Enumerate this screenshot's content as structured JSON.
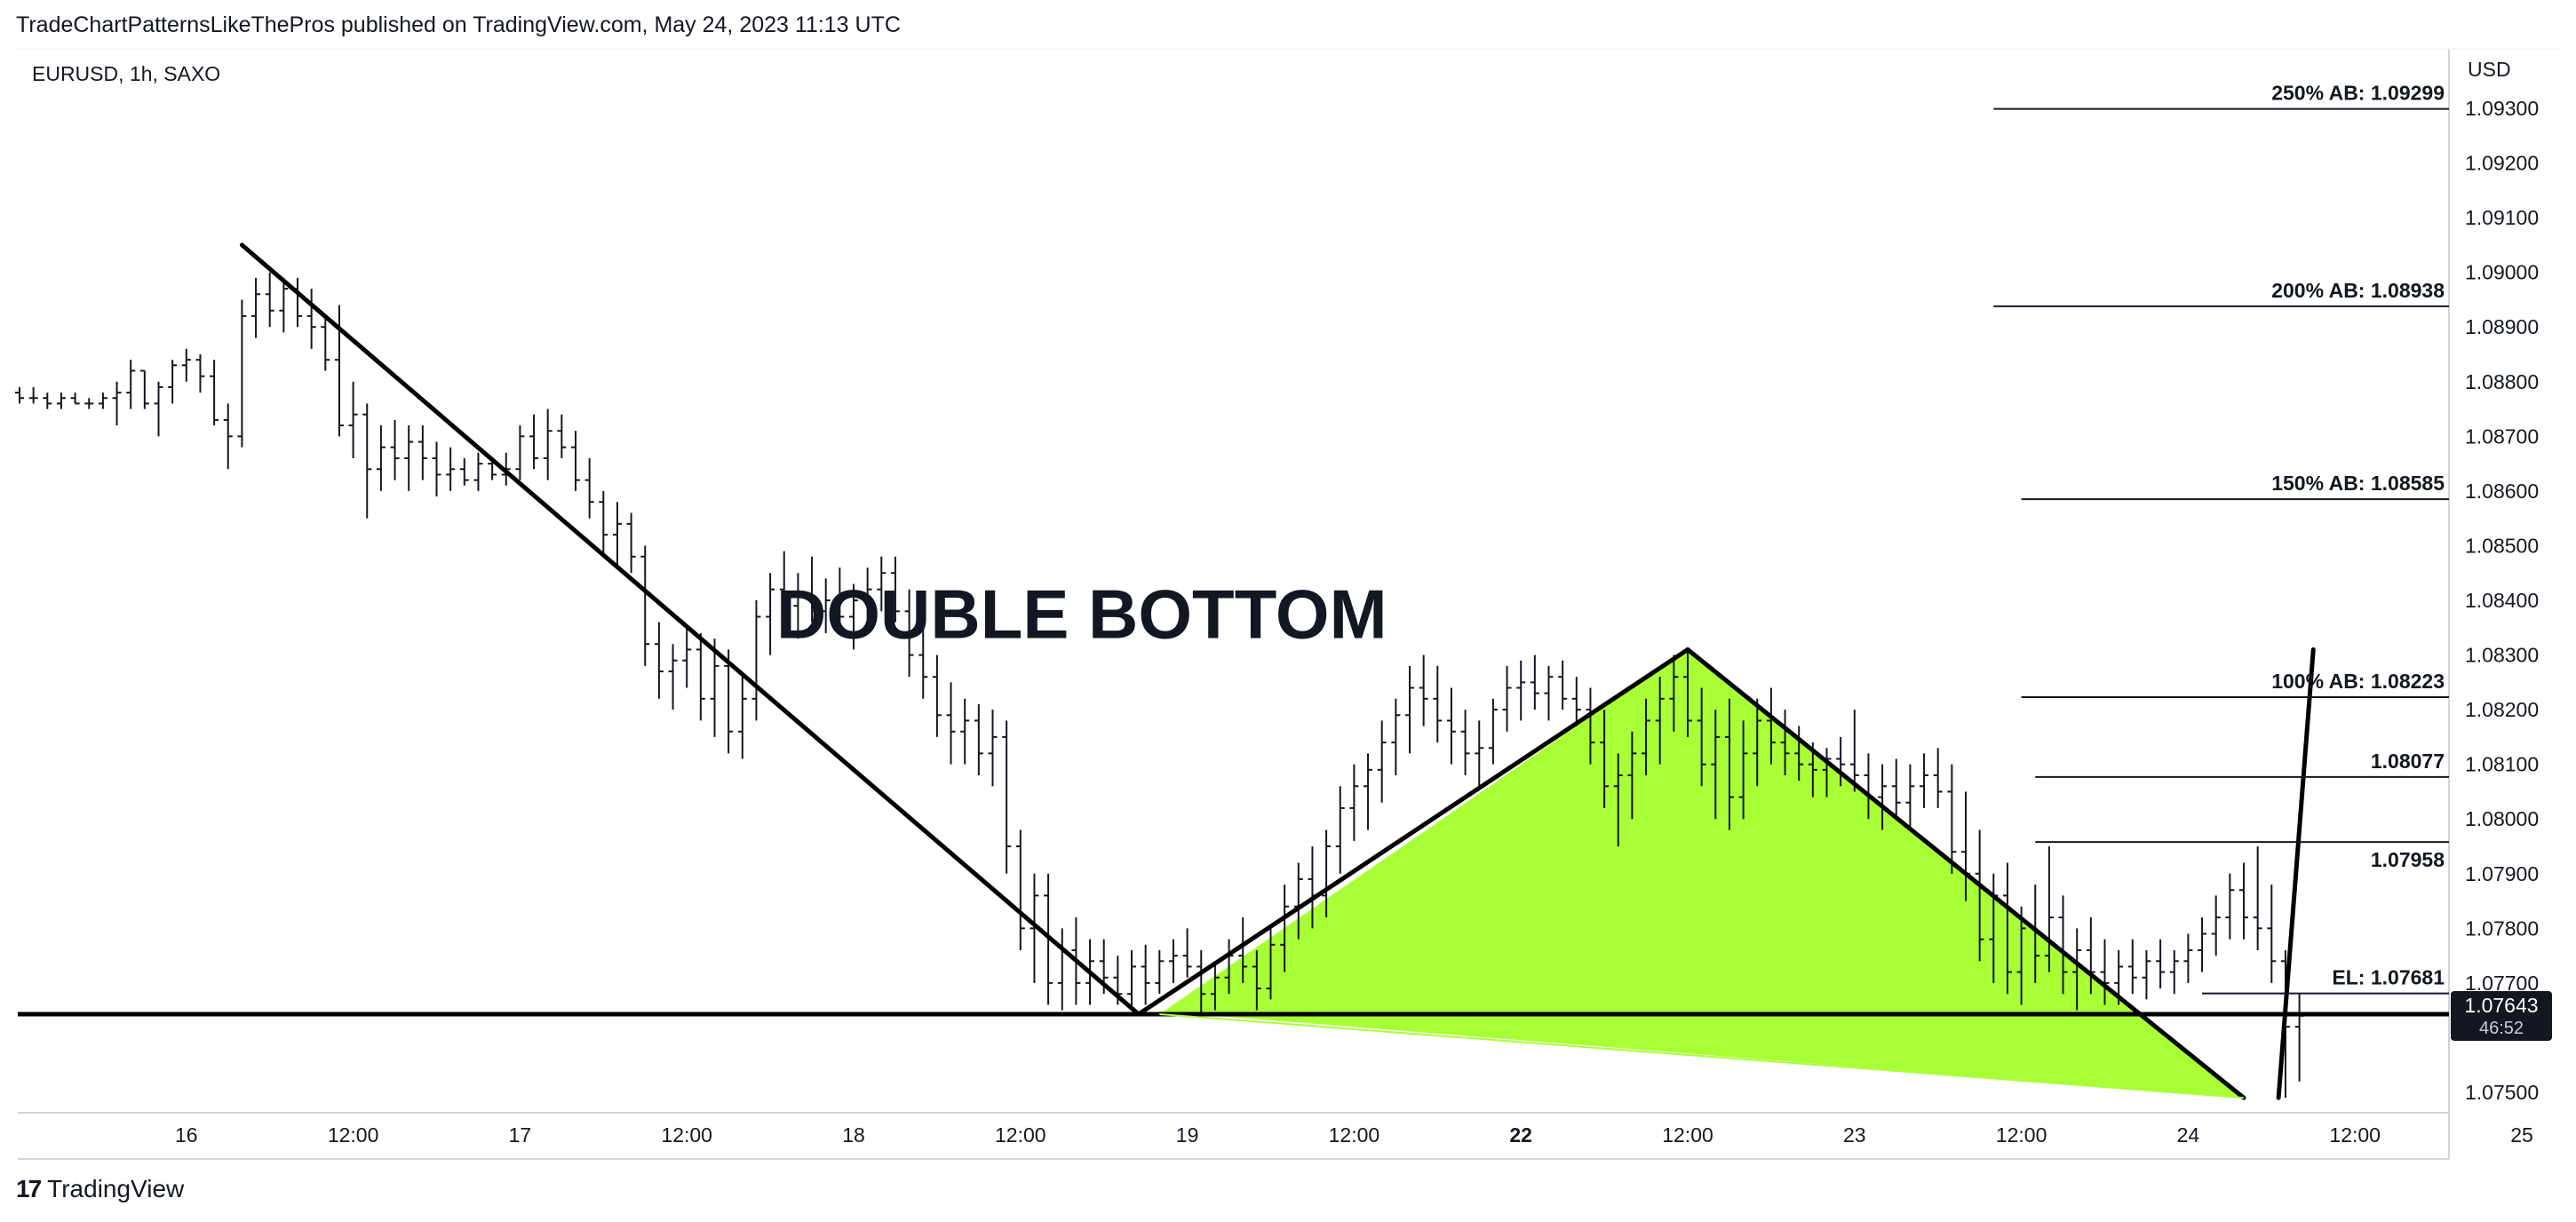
{
  "header": {
    "published": "TradeChartPatternsLikeThePros published on TradingView.com, May 24, 2023 11:13 UTC"
  },
  "symbol_line": "EURUSD, 1h, SAXO",
  "footer": {
    "brand": "TradingView",
    "logo": "17"
  },
  "colors": {
    "pattern_fill": "#a8ff35",
    "target_zone": "#7ddc6a",
    "line": "#000000",
    "grid": "#e0e3eb"
  },
  "chart_data": {
    "type": "candlestick",
    "title": "DOUBLE BOTTOM",
    "currency_label": "USD",
    "x_ticks": [
      {
        "label": "16",
        "bar": 12,
        "bold": false
      },
      {
        "label": "12:00",
        "bar": 24,
        "bold": false
      },
      {
        "label": "17",
        "bar": 36,
        "bold": false
      },
      {
        "label": "12:00",
        "bar": 48,
        "bold": false
      },
      {
        "label": "18",
        "bar": 60,
        "bold": false
      },
      {
        "label": "12:00",
        "bar": 72,
        "bold": false
      },
      {
        "label": "19",
        "bar": 84,
        "bold": false
      },
      {
        "label": "12:00",
        "bar": 96,
        "bold": false
      },
      {
        "label": "22",
        "bar": 108,
        "bold": true
      },
      {
        "label": "12:00",
        "bar": 120,
        "bold": false
      },
      {
        "label": "23",
        "bar": 132,
        "bold": false
      },
      {
        "label": "12:00",
        "bar": 144,
        "bold": false
      },
      {
        "label": "24",
        "bar": 156,
        "bold": false
      },
      {
        "label": "12:00",
        "bar": 168,
        "bold": false
      },
      {
        "label": "25",
        "bar": 180,
        "bold": false
      },
      {
        "label": "12:00",
        "bar": 192,
        "bold": false
      },
      {
        "label": "26",
        "bar": 204,
        "bold": false
      }
    ],
    "y_ticks": [
      "1.07500",
      "1.07700",
      "1.07800",
      "1.07900",
      "1.08000",
      "1.08100",
      "1.08200",
      "1.08300",
      "1.08400",
      "1.08500",
      "1.08600",
      "1.08700",
      "1.08800",
      "1.08900",
      "1.09000",
      "1.09100",
      "1.09200",
      "1.09300"
    ],
    "y_range": [
      1.0745,
      1.0935
    ],
    "bar_range": [
      0,
      210
    ],
    "last_price": {
      "value": 1.07643,
      "label": "1.07643",
      "countdown": "46:52"
    },
    "support_line": 1.07643,
    "pattern_points": [
      {
        "bar": 16,
        "price": 1.0905
      },
      {
        "bar": 80.5,
        "price": 1.07643
      },
      {
        "bar": 120,
        "price": 1.0831
      },
      {
        "bar": 160,
        "price": 1.0749
      },
      {
        "bar": 165,
        "price": 1.0831
      }
    ],
    "breakout_start": {
      "bar": 162.5,
      "price": 1.0749
    },
    "levels": [
      {
        "label": "250% AB: 1.09299",
        "price": 1.09299,
        "start_bar": 142,
        "end_bar": 210
      },
      {
        "label": "200% AB: 1.08938",
        "price": 1.08938,
        "start_bar": 142,
        "end_bar": 210
      },
      {
        "label": "150% AB: 1.08585",
        "price": 1.08585,
        "start_bar": 144,
        "end_bar": 211
      },
      {
        "label": "100% AB: 1.08223",
        "price": 1.08223,
        "start_bar": 144,
        "end_bar": 211
      },
      {
        "label": "1.08077",
        "price": 1.08077,
        "start_bar": 145,
        "end_bar": 211
      },
      {
        "label": "1.07958",
        "price": 1.07958,
        "start_bar": 145,
        "end_bar": 211
      },
      {
        "label": "EL: 1.07681",
        "price": 1.07681,
        "start_bar": 157,
        "end_bar": 187
      }
    ],
    "target_zone": {
      "from": 1.07975,
      "to": 1.08065,
      "start_bar": 177,
      "end_bar": 212
    },
    "annotations": [
      {
        "text": "DOUBLE BOTTOM",
        "bar": 57,
        "price": 1.0838
      }
    ],
    "candles": [
      [
        0,
        1.0878,
        1.0879,
        1.0876,
        1.0877
      ],
      [
        1,
        1.0877,
        1.0879,
        1.0876,
        1.0877
      ],
      [
        2,
        1.0877,
        1.0878,
        1.0875,
        1.0876
      ],
      [
        3,
        1.0876,
        1.0878,
        1.0875,
        1.0877
      ],
      [
        4,
        1.0877,
        1.0878,
        1.0876,
        1.0876
      ],
      [
        5,
        1.0876,
        1.0877,
        1.0875,
        1.0876
      ],
      [
        6,
        1.0876,
        1.0878,
        1.0875,
        1.0877
      ],
      [
        7,
        1.0877,
        1.088,
        1.0872,
        1.0878
      ],
      [
        8,
        1.0878,
        1.0884,
        1.0875,
        1.0882
      ],
      [
        9,
        1.0882,
        1.0882,
        1.0875,
        1.0876
      ],
      [
        10,
        1.0876,
        1.088,
        1.087,
        1.0879
      ],
      [
        11,
        1.0879,
        1.0884,
        1.0876,
        1.0883
      ],
      [
        12,
        1.0883,
        1.0886,
        1.088,
        1.0884
      ],
      [
        13,
        1.0884,
        1.0885,
        1.0878,
        1.0881
      ],
      [
        14,
        1.0881,
        1.0884,
        1.0872,
        1.0873
      ],
      [
        15,
        1.0873,
        1.0876,
        1.0864,
        1.087
      ],
      [
        16,
        1.087,
        1.0895,
        1.0868,
        1.0892
      ],
      [
        17,
        1.0892,
        1.0899,
        1.0888,
        1.0896
      ],
      [
        18,
        1.0896,
        1.09,
        1.089,
        1.0893
      ],
      [
        19,
        1.0893,
        1.0899,
        1.0889,
        1.0897
      ],
      [
        20,
        1.0897,
        1.0899,
        1.089,
        1.0892
      ],
      [
        21,
        1.0892,
        1.0897,
        1.0886,
        1.089
      ],
      [
        22,
        1.089,
        1.0892,
        1.0882,
        1.0884
      ],
      [
        23,
        1.0884,
        1.0894,
        1.087,
        1.0872
      ],
      [
        24,
        1.0872,
        1.088,
        1.0866,
        1.0874
      ],
      [
        25,
        1.0874,
        1.0876,
        1.0855,
        1.0864
      ],
      [
        26,
        1.0864,
        1.0872,
        1.086,
        1.0868
      ],
      [
        27,
        1.0868,
        1.0873,
        1.0862,
        1.0866
      ],
      [
        28,
        1.0866,
        1.0872,
        1.086,
        1.0869
      ],
      [
        29,
        1.0869,
        1.0872,
        1.0862,
        1.0866
      ],
      [
        30,
        1.0866,
        1.0869,
        1.0859,
        1.0863
      ],
      [
        31,
        1.0863,
        1.0868,
        1.086,
        1.0864
      ],
      [
        32,
        1.0864,
        1.0866,
        1.0861,
        1.0862
      ],
      [
        33,
        1.0862,
        1.0867,
        1.086,
        1.0865
      ],
      [
        34,
        1.0865,
        1.0866,
        1.0862,
        1.0863
      ],
      [
        35,
        1.0863,
        1.0867,
        1.0861,
        1.0864
      ],
      [
        36,
        1.0864,
        1.0872,
        1.0862,
        1.087
      ],
      [
        37,
        1.087,
        1.0874,
        1.0864,
        1.0866
      ],
      [
        38,
        1.0866,
        1.0875,
        1.0862,
        1.0871
      ],
      [
        39,
        1.0871,
        1.0874,
        1.0866,
        1.0868
      ],
      [
        40,
        1.0868,
        1.0871,
        1.086,
        1.0862
      ],
      [
        41,
        1.0862,
        1.0866,
        1.0855,
        1.0858
      ],
      [
        42,
        1.0858,
        1.086,
        1.0848,
        1.0852
      ],
      [
        43,
        1.0852,
        1.0858,
        1.0846,
        1.0854
      ],
      [
        44,
        1.0854,
        1.0856,
        1.0845,
        1.0848
      ],
      [
        45,
        1.0848,
        1.085,
        1.0828,
        1.0832
      ],
      [
        46,
        1.0832,
        1.0836,
        1.0822,
        1.0827
      ],
      [
        47,
        1.0827,
        1.0832,
        1.082,
        1.0829
      ],
      [
        48,
        1.0829,
        1.0835,
        1.0824,
        1.0831
      ],
      [
        49,
        1.0831,
        1.0834,
        1.0818,
        1.0822
      ],
      [
        50,
        1.0822,
        1.0833,
        1.0815,
        1.0828
      ],
      [
        51,
        1.0828,
        1.0831,
        1.0812,
        1.0816
      ],
      [
        52,
        1.0816,
        1.0826,
        1.0811,
        1.0822
      ],
      [
        53,
        1.0822,
        1.084,
        1.0818,
        1.0837
      ],
      [
        54,
        1.0837,
        1.0845,
        1.083,
        1.0842
      ],
      [
        55,
        1.0842,
        1.0849,
        1.0836,
        1.0839
      ],
      [
        56,
        1.0839,
        1.0845,
        1.0833,
        1.0841
      ],
      [
        57,
        1.0841,
        1.0848,
        1.0836,
        1.0838
      ],
      [
        58,
        1.0838,
        1.0844,
        1.0834,
        1.084
      ],
      [
        59,
        1.084,
        1.0846,
        1.0835,
        1.0837
      ],
      [
        60,
        1.0837,
        1.0843,
        1.0831,
        1.084
      ],
      [
        61,
        1.084,
        1.0846,
        1.0834,
        1.0842
      ],
      [
        62,
        1.0842,
        1.0848,
        1.0838,
        1.0845
      ],
      [
        63,
        1.0845,
        1.0848,
        1.0836,
        1.0838
      ],
      [
        64,
        1.0838,
        1.0842,
        1.0826,
        1.083
      ],
      [
        65,
        1.083,
        1.0836,
        1.0822,
        1.0826
      ],
      [
        66,
        1.0826,
        1.083,
        1.0815,
        1.0819
      ],
      [
        67,
        1.0819,
        1.0825,
        1.081,
        1.0816
      ],
      [
        68,
        1.0816,
        1.0822,
        1.081,
        1.0818
      ],
      [
        69,
        1.0818,
        1.0821,
        1.0808,
        1.0812
      ],
      [
        70,
        1.0812,
        1.082,
        1.0806,
        1.0815
      ],
      [
        71,
        1.0815,
        1.0818,
        1.079,
        1.0795
      ],
      [
        72,
        1.0795,
        1.0798,
        1.0776,
        1.078
      ],
      [
        73,
        1.078,
        1.079,
        1.077,
        1.0786
      ],
      [
        74,
        1.0786,
        1.079,
        1.0766,
        1.077
      ],
      [
        75,
        1.077,
        1.078,
        1.0765,
        1.0776
      ],
      [
        76,
        1.0776,
        1.0782,
        1.0766,
        1.077
      ],
      [
        77,
        1.077,
        1.0778,
        1.0766,
        1.0774
      ],
      [
        78,
        1.0774,
        1.0778,
        1.0768,
        1.0771
      ],
      [
        79,
        1.0771,
        1.0775,
        1.0766,
        1.0768
      ],
      [
        80,
        1.0768,
        1.0776,
        1.0765,
        1.0773
      ],
      [
        81,
        1.0773,
        1.0777,
        1.0766,
        1.077
      ],
      [
        82,
        1.077,
        1.0776,
        1.0768,
        1.0774
      ],
      [
        83,
        1.0774,
        1.0778,
        1.077,
        1.0775
      ],
      [
        84,
        1.0775,
        1.078,
        1.0771,
        1.0773
      ],
      [
        85,
        1.0773,
        1.0776,
        1.0764,
        1.0768
      ],
      [
        86,
        1.0768,
        1.0774,
        1.0765,
        1.0771
      ],
      [
        87,
        1.0771,
        1.0778,
        1.0768,
        1.0775
      ],
      [
        88,
        1.0775,
        1.0782,
        1.077,
        1.0773
      ],
      [
        89,
        1.0773,
        1.0776,
        1.0765,
        1.0769
      ],
      [
        90,
        1.0769,
        1.078,
        1.0767,
        1.0777
      ],
      [
        91,
        1.0777,
        1.0788,
        1.0772,
        1.0784
      ],
      [
        92,
        1.0784,
        1.0792,
        1.0778,
        1.0789
      ],
      [
        93,
        1.0789,
        1.0795,
        1.078,
        1.0786
      ],
      [
        94,
        1.0786,
        1.0798,
        1.0782,
        1.0795
      ],
      [
        95,
        1.0795,
        1.0806,
        1.079,
        1.0802
      ],
      [
        96,
        1.0802,
        1.081,
        1.0796,
        1.0806
      ],
      [
        97,
        1.0806,
        1.0812,
        1.0798,
        1.0809
      ],
      [
        98,
        1.0809,
        1.0818,
        1.0803,
        1.0814
      ],
      [
        99,
        1.0814,
        1.0822,
        1.0808,
        1.0819
      ],
      [
        100,
        1.0819,
        1.0828,
        1.0812,
        1.0824
      ],
      [
        101,
        1.0824,
        1.083,
        1.0817,
        1.0822
      ],
      [
        102,
        1.0822,
        1.0828,
        1.0814,
        1.0818
      ],
      [
        103,
        1.0818,
        1.0824,
        1.081,
        1.0816
      ],
      [
        104,
        1.0816,
        1.082,
        1.0808,
        1.0812
      ],
      [
        105,
        1.0812,
        1.0818,
        1.0806,
        1.0813
      ],
      [
        106,
        1.0813,
        1.0822,
        1.081,
        1.082
      ],
      [
        107,
        1.082,
        1.0828,
        1.0816,
        1.0824
      ],
      [
        108,
        1.0824,
        1.0829,
        1.0818,
        1.0825
      ],
      [
        109,
        1.0825,
        1.083,
        1.082,
        1.0823
      ],
      [
        110,
        1.0823,
        1.0828,
        1.0818,
        1.0826
      ],
      [
        111,
        1.0826,
        1.0829,
        1.082,
        1.0822
      ],
      [
        112,
        1.0822,
        1.0826,
        1.0817,
        1.082
      ],
      [
        113,
        1.082,
        1.0824,
        1.081,
        1.0814
      ],
      [
        114,
        1.0814,
        1.082,
        1.0802,
        1.0806
      ],
      [
        115,
        1.0806,
        1.0812,
        1.0795,
        1.0808
      ],
      [
        116,
        1.0808,
        1.0816,
        1.08,
        1.0812
      ],
      [
        117,
        1.0812,
        1.0822,
        1.0808,
        1.0818
      ],
      [
        118,
        1.0818,
        1.0826,
        1.081,
        1.0822
      ],
      [
        119,
        1.0822,
        1.083,
        1.0816,
        1.0826
      ],
      [
        120,
        1.0826,
        1.0831,
        1.0815,
        1.0818
      ],
      [
        121,
        1.0818,
        1.0824,
        1.0806,
        1.081
      ],
      [
        122,
        1.081,
        1.082,
        1.08,
        1.0815
      ],
      [
        123,
        1.0815,
        1.0822,
        1.0798,
        1.0804
      ],
      [
        124,
        1.0804,
        1.0818,
        1.08,
        1.0812
      ],
      [
        125,
        1.0812,
        1.0822,
        1.0806,
        1.0818
      ],
      [
        126,
        1.0818,
        1.0824,
        1.081,
        1.0814
      ],
      [
        127,
        1.0814,
        1.082,
        1.0808,
        1.0812
      ],
      [
        128,
        1.0812,
        1.0817,
        1.0807,
        1.081
      ],
      [
        129,
        1.081,
        1.0814,
        1.0804,
        1.0809
      ],
      [
        130,
        1.0809,
        1.0813,
        1.0804,
        1.0811
      ],
      [
        131,
        1.0811,
        1.0815,
        1.0806,
        1.081
      ],
      [
        132,
        1.081,
        1.082,
        1.0805,
        1.0808
      ],
      [
        133,
        1.0808,
        1.0812,
        1.08,
        1.0804
      ],
      [
        134,
        1.0804,
        1.081,
        1.0798,
        1.0806
      ],
      [
        135,
        1.0806,
        1.0811,
        1.08,
        1.0803
      ],
      [
        136,
        1.0803,
        1.081,
        1.0798,
        1.0806
      ],
      [
        137,
        1.0806,
        1.0812,
        1.0802,
        1.0808
      ],
      [
        138,
        1.0808,
        1.0813,
        1.0802,
        1.0805
      ],
      [
        139,
        1.0805,
        1.081,
        1.079,
        1.0794
      ],
      [
        140,
        1.0794,
        1.0805,
        1.0785,
        1.079
      ],
      [
        141,
        1.079,
        1.0798,
        1.0774,
        1.0778
      ],
      [
        142,
        1.0778,
        1.079,
        1.077,
        1.0786
      ],
      [
        143,
        1.0786,
        1.0792,
        1.0768,
        1.0772
      ],
      [
        144,
        1.0772,
        1.0784,
        1.0766,
        1.078
      ],
      [
        145,
        1.078,
        1.0788,
        1.077,
        1.0775
      ],
      [
        146,
        1.0775,
        1.0795,
        1.0772,
        1.0782
      ],
      [
        147,
        1.0782,
        1.0786,
        1.0768,
        1.0772
      ],
      [
        148,
        1.0772,
        1.078,
        1.0765,
        1.0776
      ],
      [
        149,
        1.0776,
        1.0782,
        1.0768,
        1.0772
      ],
      [
        150,
        1.0772,
        1.0778,
        1.0766,
        1.077
      ],
      [
        151,
        1.077,
        1.0776,
        1.0766,
        1.0773
      ],
      [
        152,
        1.0773,
        1.0778,
        1.0768,
        1.0771
      ],
      [
        153,
        1.0771,
        1.0776,
        1.0767,
        1.0774
      ],
      [
        154,
        1.0774,
        1.0778,
        1.0769,
        1.0772
      ],
      [
        155,
        1.0772,
        1.0776,
        1.0768,
        1.0774
      ],
      [
        156,
        1.0774,
        1.0779,
        1.077,
        1.0776
      ],
      [
        157,
        1.0776,
        1.0782,
        1.0772,
        1.0779
      ],
      [
        158,
        1.0779,
        1.0786,
        1.0775,
        1.0782
      ],
      [
        159,
        1.0782,
        1.079,
        1.0778,
        1.0787
      ],
      [
        160,
        1.0787,
        1.0792,
        1.0778,
        1.0782
      ],
      [
        161,
        1.0782,
        1.0795,
        1.0776,
        1.078
      ],
      [
        162,
        1.078,
        1.0788,
        1.077,
        1.0774
      ],
      [
        163,
        1.0774,
        1.0776,
        1.0749,
        1.0762
      ],
      [
        164,
        1.0762,
        1.0768,
        1.0752,
        1.0764
      ]
    ]
  }
}
